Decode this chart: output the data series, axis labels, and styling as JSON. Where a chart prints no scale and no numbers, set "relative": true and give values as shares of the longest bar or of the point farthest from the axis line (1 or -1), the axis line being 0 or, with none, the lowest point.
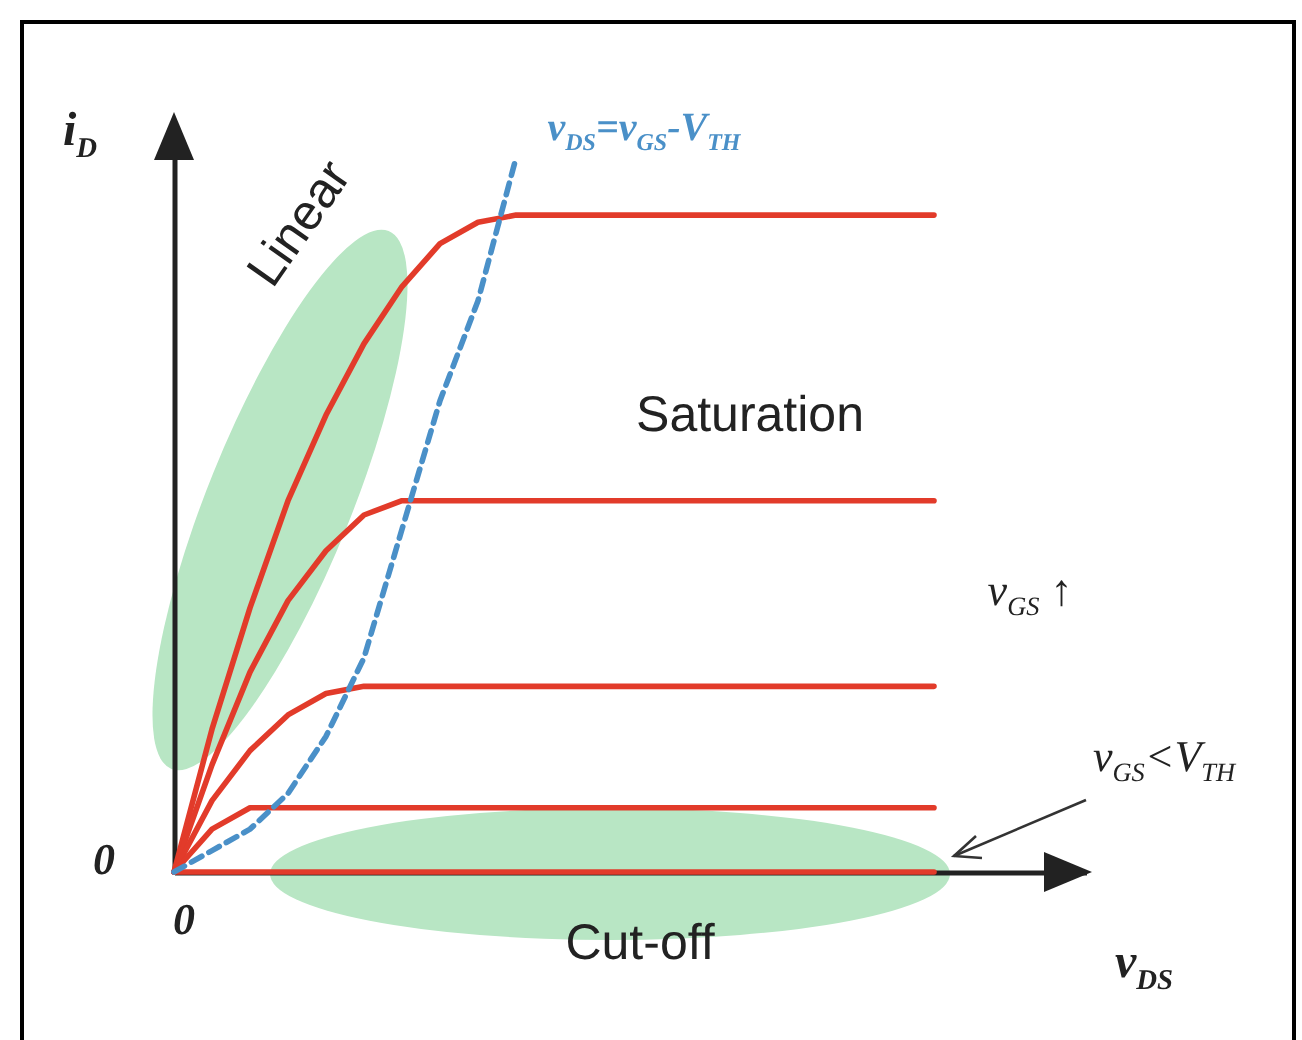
{
  "chart_data": {
    "type": "line",
    "relative": true,
    "grid": false,
    "xlabel": "v$_{DS}$",
    "ylabel": "i$_{D}$",
    "categories": [
      null,
      null,
      null,
      null,
      null,
      null,
      null,
      null,
      null,
      null,
      null,
      null,
      null,
      null,
      null,
      null,
      null,
      null,
      null,
      null,
      null,
      null,
      null,
      null,
      null
    ],
    "series": [
      {
        "color": "#e23b2a",
        "line_style": "solid",
        "values": [
          0,
          0.2,
          0.37,
          0.52,
          0.64,
          0.74,
          0.82,
          0.88,
          0.91,
          0.92,
          0.92,
          0.92,
          0.92,
          0.92,
          0.92,
          0.92,
          0.92,
          0.92,
          0.92,
          0.92,
          0.92,
          null,
          null,
          null,
          null
        ]
      },
      {
        "color": "#e23b2a",
        "line_style": "solid",
        "values": [
          0,
          0.15,
          0.28,
          0.38,
          0.45,
          0.5,
          0.52,
          0.52,
          0.52,
          0.52,
          0.52,
          0.52,
          0.52,
          0.52,
          0.52,
          0.52,
          0.52,
          0.52,
          0.52,
          0.52,
          0.52,
          null,
          null,
          null,
          null
        ]
      },
      {
        "color": "#e23b2a",
        "line_style": "solid",
        "values": [
          0,
          0.1,
          0.17,
          0.22,
          0.25,
          0.26,
          0.26,
          0.26,
          0.26,
          0.26,
          0.26,
          0.26,
          0.26,
          0.26,
          0.26,
          0.26,
          0.26,
          0.26,
          0.26,
          0.26,
          0.26,
          null,
          null,
          null,
          null
        ]
      },
      {
        "color": "#e23b2a",
        "line_style": "solid",
        "values": [
          0,
          0.06,
          0.09,
          0.09,
          0.09,
          0.09,
          0.09,
          0.09,
          0.09,
          0.09,
          0.09,
          0.09,
          0.09,
          0.09,
          0.09,
          0.09,
          0.09,
          0.09,
          0.09,
          0.09,
          0.09,
          null,
          null,
          null,
          null
        ]
      },
      {
        "color": "#e23b2a",
        "line_style": "solid",
        "values": [
          0,
          0,
          0,
          0,
          0,
          0,
          0,
          0,
          0,
          0,
          0,
          0,
          0,
          0,
          0,
          0,
          0,
          0,
          0,
          0,
          0,
          null,
          null,
          null,
          null
        ]
      },
      {
        "name": "v$_{DS}$=v$_{GS}$-V$_{TH}$",
        "color": "#4a90c8",
        "line_style": "dashed",
        "values": [
          0,
          0.03,
          0.06,
          0.11,
          0.19,
          0.3,
          0.48,
          0.66,
          0.8,
          1,
          null,
          null,
          null,
          null,
          null,
          null,
          null,
          null,
          null,
          null,
          null,
          null,
          null,
          null,
          null
        ]
      }
    ],
    "annotations": [
      "Linear",
      "Saturation",
      "Cut-off",
      "v$_{GS}$ ↑",
      "v$_{GS}$<V$_{TH}$",
      "0",
      "0"
    ]
  }
}
